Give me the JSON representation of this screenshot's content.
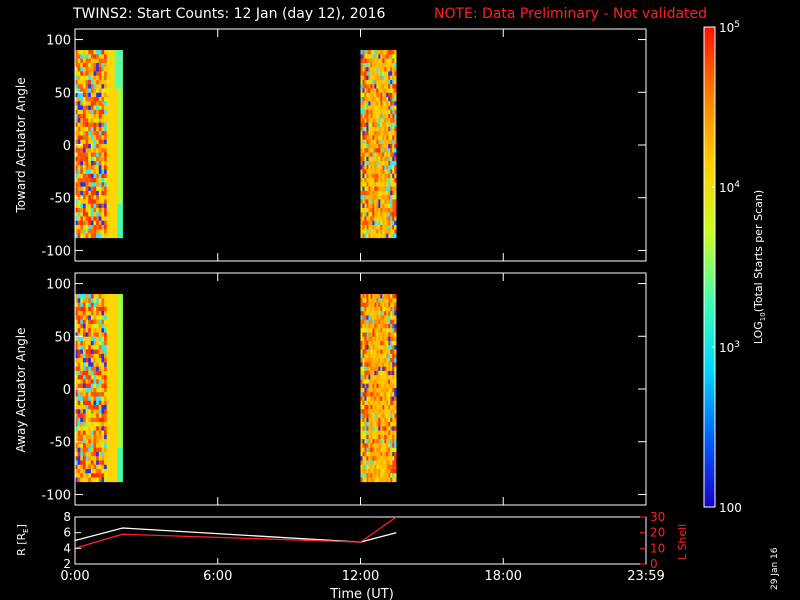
{
  "title": {
    "main": "TWINS2: Start Counts: 12 Jan (day  12), 2016",
    "note": "NOTE: Data Preliminary - Not validated"
  },
  "date_stamp": "29 Jan 16",
  "chart_data": [
    {
      "type": "heatmap",
      "ylabel": "Toward Actuator Angle",
      "ylim": [
        -110,
        110
      ],
      "yticks": [
        "100",
        "50",
        "0",
        "-50",
        "-100"
      ],
      "xlim_hours": [
        0,
        24
      ],
      "data_blocks": [
        {
          "start": "00:00",
          "end": "02:00",
          "angle_range": [
            -88,
            90
          ]
        },
        {
          "start": "12:00",
          "end": "13:30",
          "angle_range": [
            -88,
            90
          ]
        }
      ]
    },
    {
      "type": "heatmap",
      "ylabel": "Away Actuator Angle",
      "ylim": [
        -110,
        110
      ],
      "yticks": [
        "100",
        "50",
        "0",
        "-50",
        "-100"
      ],
      "xlim_hours": [
        0,
        24
      ],
      "data_blocks": [
        {
          "start": "00:00",
          "end": "02:00",
          "angle_range": [
            -88,
            90
          ]
        },
        {
          "start": "12:00",
          "end": "13:30",
          "angle_range": [
            -88,
            90
          ]
        }
      ]
    },
    {
      "type": "line",
      "ylabel": "R [R",
      "ylabel_sub": "E",
      "ylabel_end": "]",
      "ylim": [
        2,
        8
      ],
      "yticks": [
        "8",
        "6",
        "4",
        "2"
      ],
      "y2label": "L Shell",
      "y2lim": [
        0,
        30
      ],
      "y2ticks": [
        "30",
        "20",
        "10",
        "0"
      ],
      "xticks": [
        "0:00",
        "6:00",
        "12:00",
        "18:00",
        "23:59"
      ],
      "xlabel": "Time (UT)",
      "series": [
        {
          "axis": "left",
          "color": "#ffffff",
          "x": [
            0.0,
            2.0,
            12.0,
            13.5
          ],
          "y": [
            5.0,
            6.6,
            4.8,
            6.0
          ]
        },
        {
          "axis": "right",
          "color": "#ff2020",
          "x": [
            0.0,
            2.0,
            12.0,
            13.5
          ],
          "y": [
            10,
            19,
            14,
            30
          ]
        }
      ]
    }
  ],
  "colorbar": {
    "ticks": [
      "10",
      "10",
      "10",
      "100"
    ],
    "tick_exps": [
      "5",
      "4",
      "3",
      ""
    ],
    "label_pre": "LOG",
    "label_sub": "10",
    "label_post": "(Total Starts per Scan)",
    "stops": [
      "#1800c8",
      "#0060ff",
      "#00d8ff",
      "#40ffb0",
      "#c8ff20",
      "#ffd000",
      "#ff8000",
      "#ff1000"
    ]
  }
}
